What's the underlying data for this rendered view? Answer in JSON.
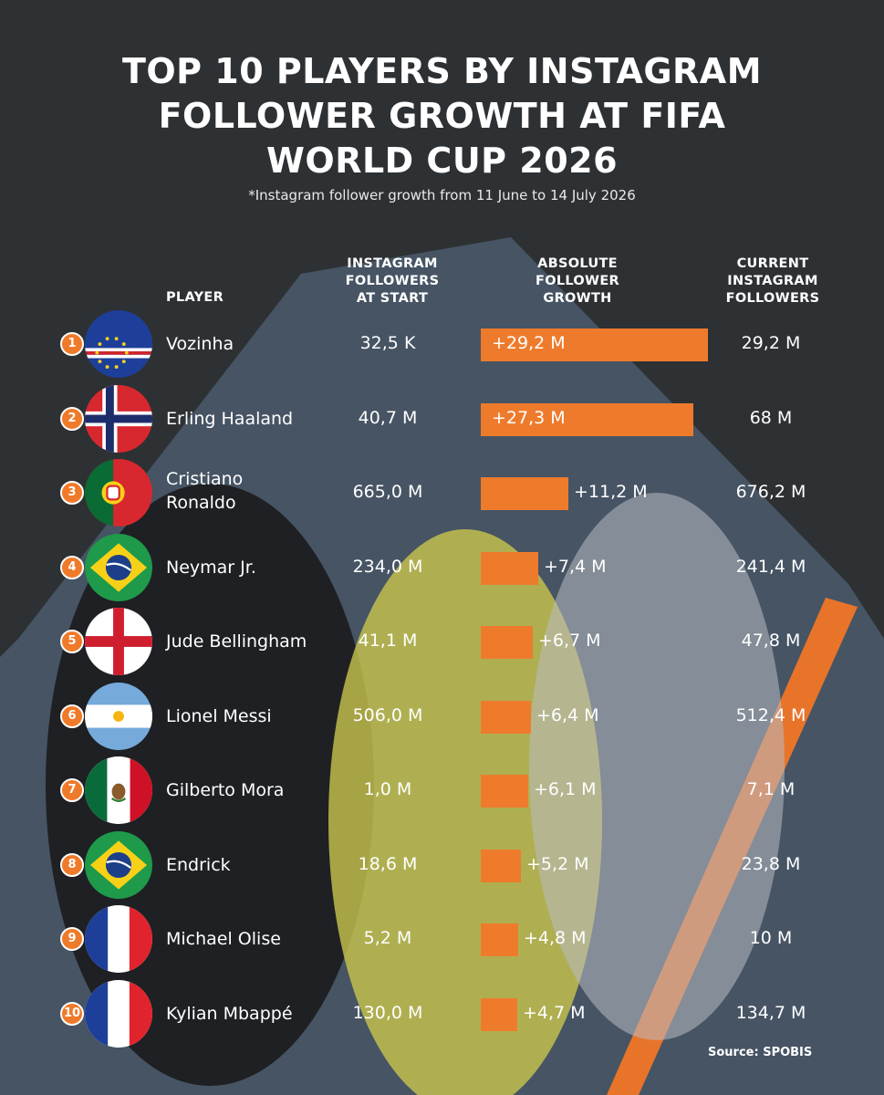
{
  "chart_data": {
    "type": "table",
    "title": "TOP 10 PLAYERS BY INSTAGRAM FOLLOWER GROWTH AT FIFA WORLD CUP 2026",
    "title_lines": [
      "TOP 10 PLAYERS BY INSTAGRAM",
      "FOLLOWER GROWTH AT FIFA",
      "WORLD CUP 2026"
    ],
    "subtitle": "*Instagram follower growth from 11 June to 14 July 2026",
    "columns": {
      "player": "PLAYER",
      "start": [
        "INSTAGRAM",
        "FOLLOWERS",
        "AT START"
      ],
      "growth": [
        "ABSOLUTE",
        "FOLLOWER",
        "GROWTH"
      ],
      "current": [
        "CURRENT",
        "INSTAGRAM",
        "FOLLOWERS"
      ]
    },
    "growth_unit": "M",
    "growth_max": 29.2,
    "bar_color": "#ee7b2c",
    "accent_color": "#ef7a2a",
    "rows": [
      {
        "rank": "1",
        "flag": "cape-verde-flag",
        "name_lines": [
          "Vozinha"
        ],
        "start": "32,5 K",
        "growth_label": "+29,2 M",
        "growth_value": 29.2,
        "current": "29,2 M"
      },
      {
        "rank": "2",
        "flag": "norway-flag",
        "name_lines": [
          "Erling Haaland"
        ],
        "start": "40,7 M",
        "growth_label": "+27,3 M",
        "growth_value": 27.3,
        "current": "68 M"
      },
      {
        "rank": "3",
        "flag": "portugal-flag",
        "name_lines": [
          "Cristiano",
          "Ronaldo"
        ],
        "start": "665,0 M",
        "growth_label": "+11,2 M",
        "growth_value": 11.2,
        "current": "676,2 M"
      },
      {
        "rank": "4",
        "flag": "brazil-flag",
        "name_lines": [
          "Neymar Jr."
        ],
        "start": "234,0 M",
        "growth_label": "+7,4 M",
        "growth_value": 7.4,
        "current": "241,4 M"
      },
      {
        "rank": "5",
        "flag": "england-flag",
        "name_lines": [
          "Jude Bellingham"
        ],
        "start": "41,1 M",
        "growth_label": "+6,7 M",
        "growth_value": 6.7,
        "current": "47,8 M"
      },
      {
        "rank": "6",
        "flag": "argentina-flag",
        "name_lines": [
          "Lionel Messi"
        ],
        "start": "506,0 M",
        "growth_label": "+6,4 M",
        "growth_value": 6.4,
        "current": "512,4 M"
      },
      {
        "rank": "7",
        "flag": "mexico-flag",
        "name_lines": [
          "Gilberto Mora"
        ],
        "start": "1,0 M",
        "growth_label": "+6,1 M",
        "growth_value": 6.1,
        "current": "7,1 M"
      },
      {
        "rank": "8",
        "flag": "brazil-flag",
        "name_lines": [
          "Endrick"
        ],
        "start": "18,6 M",
        "growth_label": "+5,2 M",
        "growth_value": 5.2,
        "current": "23,8 M"
      },
      {
        "rank": "9",
        "flag": "france-flag",
        "name_lines": [
          "Michael Olise"
        ],
        "start": "5,2 M",
        "growth_label": "+4,8 M",
        "growth_value": 4.8,
        "current": "10 M"
      },
      {
        "rank": "10",
        "flag": "france-flag",
        "name_lines": [
          "Kylian Mbappé"
        ],
        "start": "130,0 M",
        "growth_label": "+4,7 M",
        "growth_value": 4.7,
        "current": "134,7 M"
      }
    ],
    "source": "Source: SPOBIS"
  }
}
